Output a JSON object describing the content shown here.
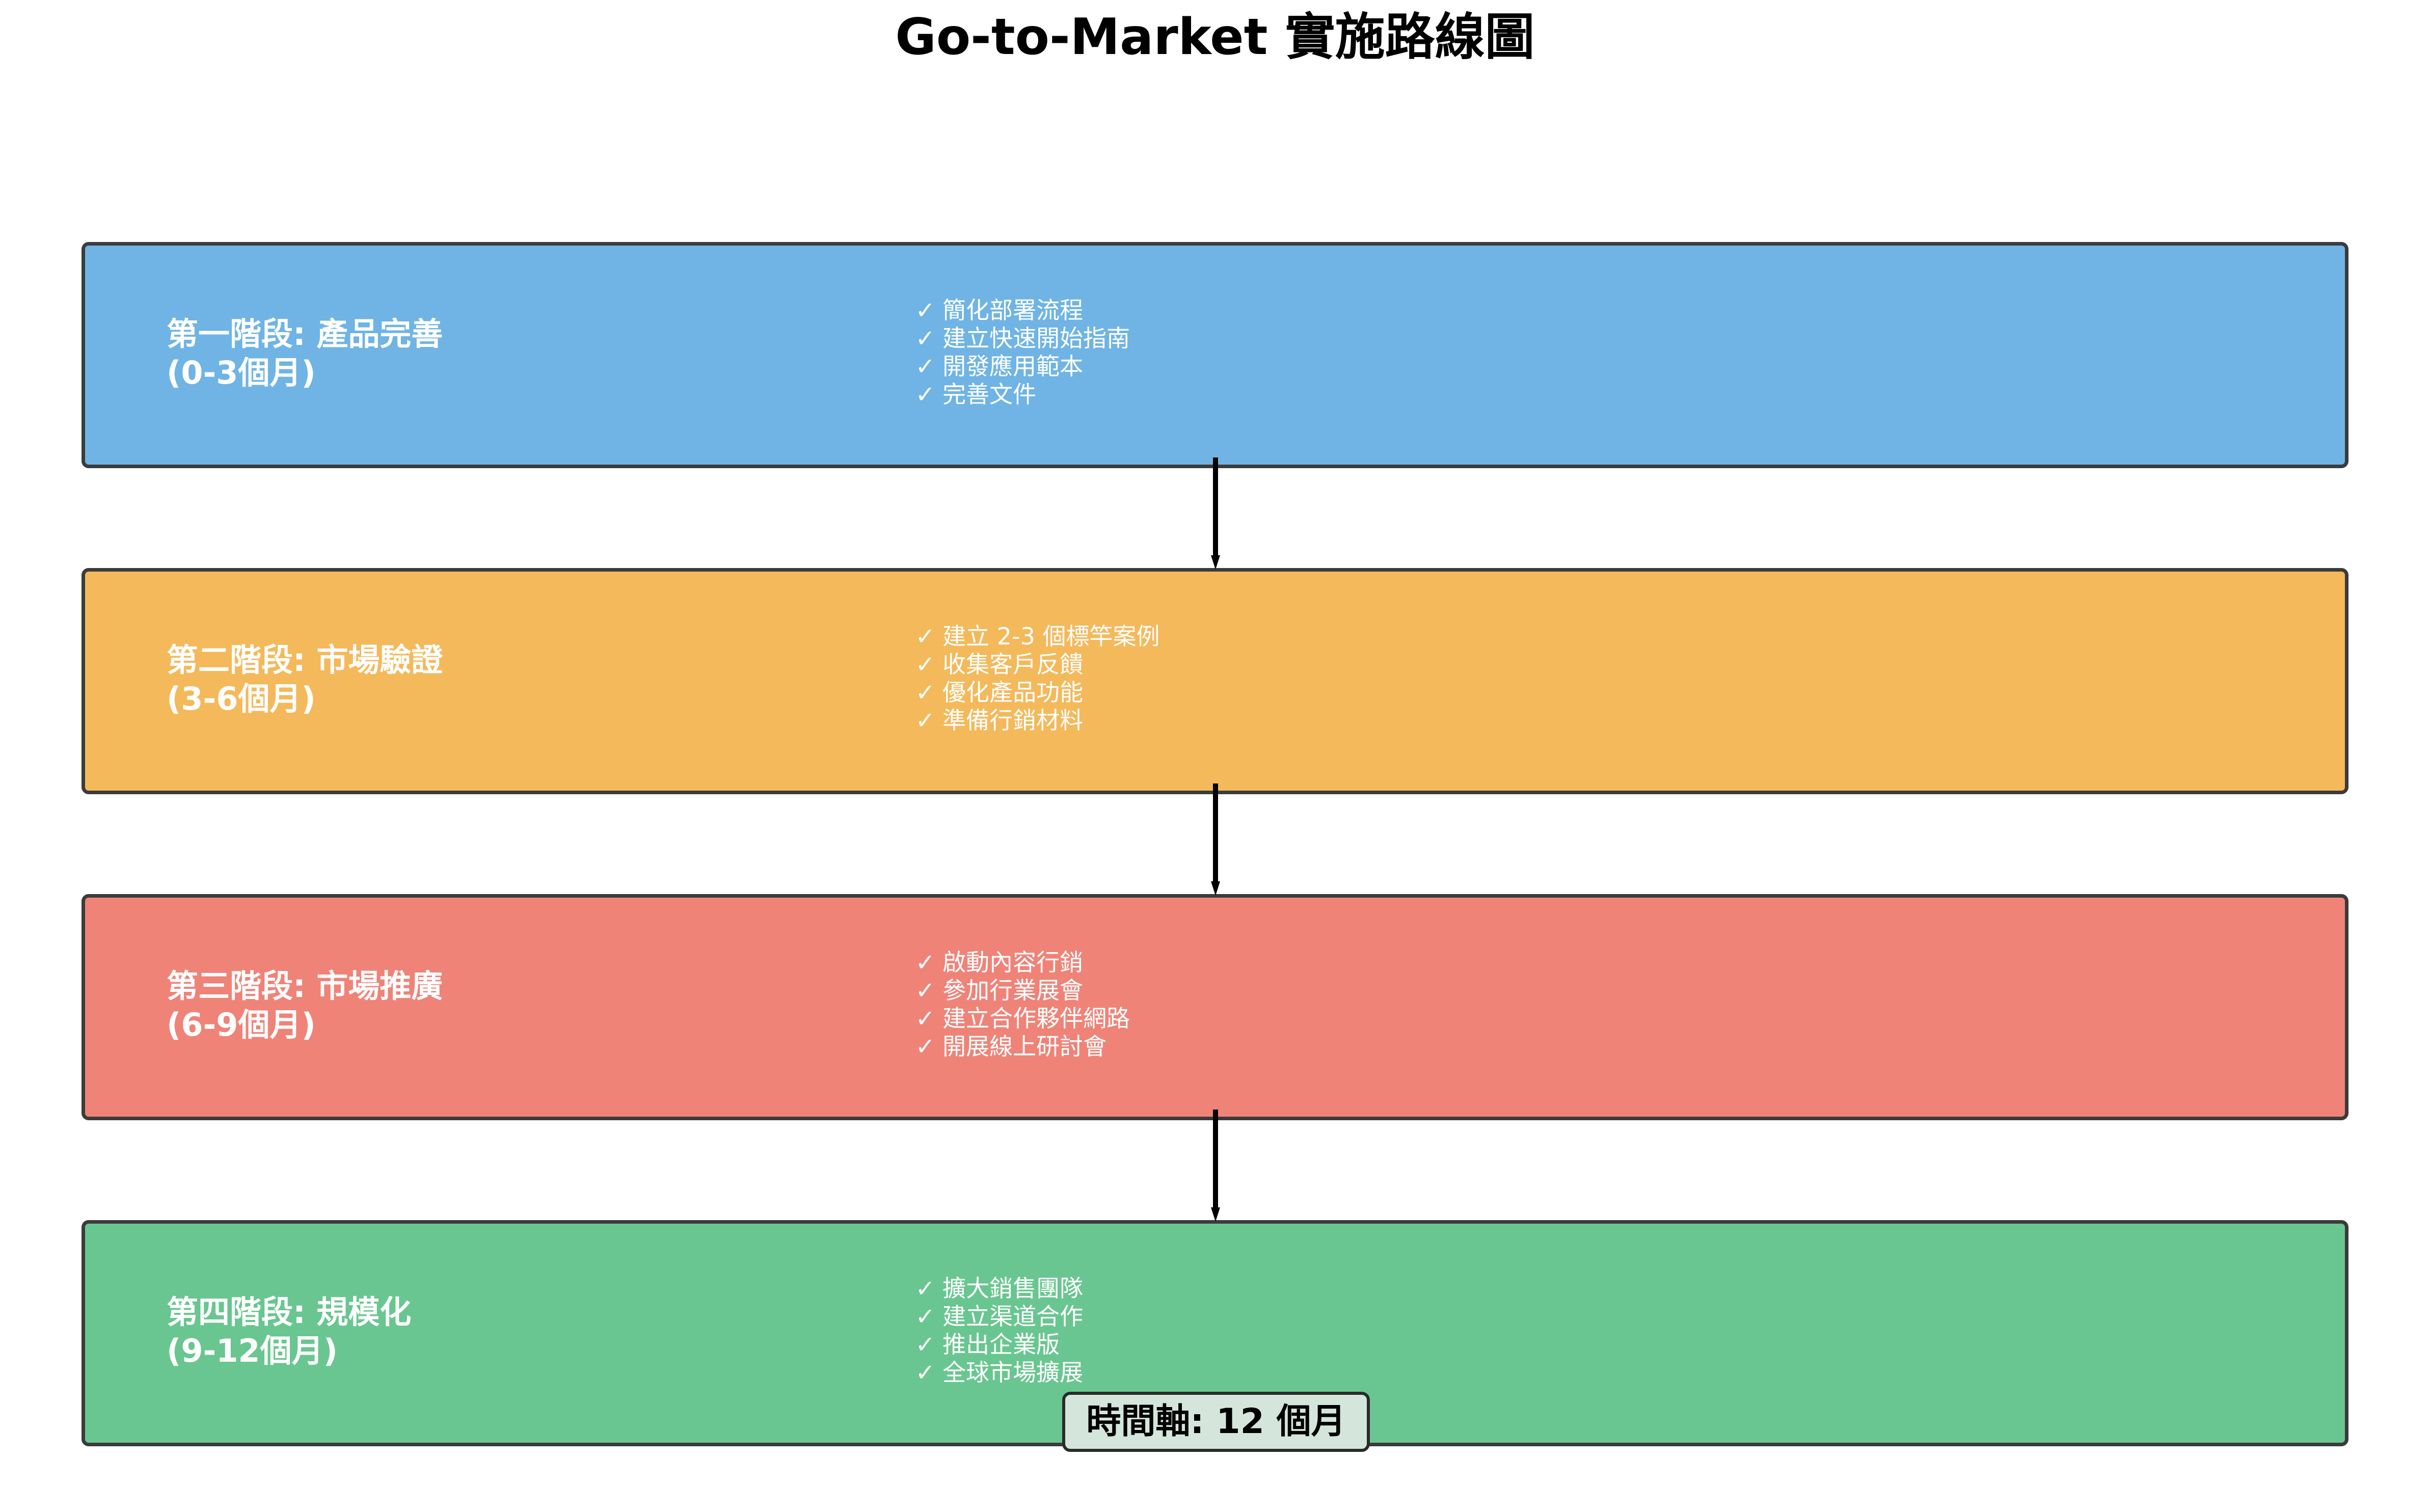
{
  "title": "Go-to-Market 實施路線圖",
  "phases": [
    {
      "name": "第一階段: 產品完善",
      "period": "(0-3個月)",
      "color": "#6fb4e4",
      "tasks": [
        "✓ 簡化部署流程",
        "✓ 建立快速開始指南",
        "✓ 開發應用範本",
        "✓ 完善文件"
      ]
    },
    {
      "name": "第二階段: 市場驗證",
      "period": "(3-6個月)",
      "color": "#f4b95b",
      "tasks": [
        "✓ 建立 2-3 個標竿案例",
        "✓ 收集客戶反饋",
        "✓ 優化產品功能",
        "✓ 準備行銷材料"
      ]
    },
    {
      "name": "第三階段: 市場推廣",
      "period": "(6-9個月)",
      "color": "#ef8378",
      "tasks": [
        "✓ 啟動內容行銷",
        "✓ 參加行業展會",
        "✓ 建立合作夥伴網路",
        "✓ 開展線上研討會"
      ]
    },
    {
      "name": "第四階段: 規模化",
      "period": "(9-12個月)",
      "color": "#69c690",
      "tasks": [
        "✓ 擴大銷售團隊",
        "✓ 建立渠道合作",
        "✓ 推出企業版",
        "✓ 全球市場擴展"
      ]
    }
  ],
  "timeline_label": "時間軸: 12 個月"
}
